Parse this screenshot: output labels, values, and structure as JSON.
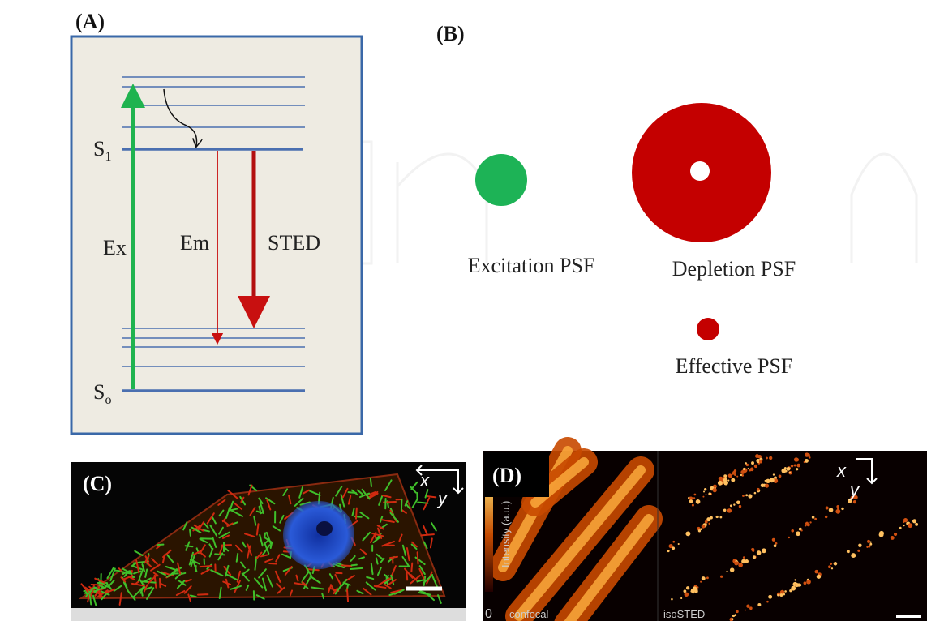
{
  "panel_a": {
    "label": "(A)",
    "s1": {
      "letter": "S",
      "sub": "1"
    },
    "s0": {
      "letter": "S",
      "sub": "o"
    },
    "ex": "Ex",
    "em": "Em",
    "sted": "STED"
  },
  "panel_b": {
    "label": "(B)",
    "excitation": "Excitation PSF",
    "depletion": "Depletion PSF",
    "effective": "Effective PSF"
  },
  "panel_c": {
    "label": "(C)",
    "x": "x",
    "y": "y"
  },
  "panel_d": {
    "label": "(D)",
    "x": "x",
    "y": "y",
    "colorbar": "Intensity (a.u.)",
    "zero": "0",
    "left": "confocal",
    "right": "isoSTED"
  }
}
